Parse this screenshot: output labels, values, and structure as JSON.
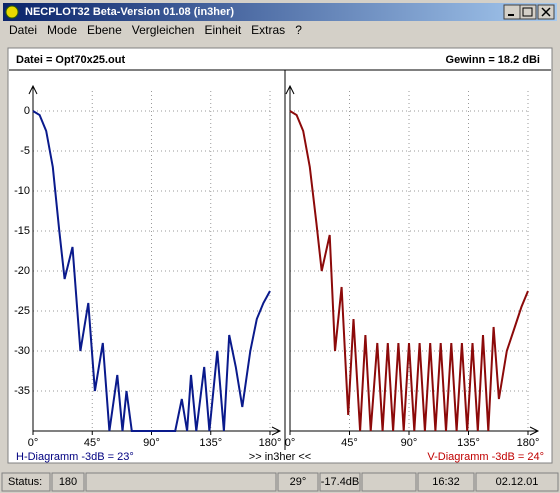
{
  "window": {
    "title": "NECPLOT32  Beta-Version 01.08 (in3her)"
  },
  "menu": [
    "Datei",
    "Mode",
    "Ebene",
    "Vergleichen",
    "Einheit",
    "Extras",
    "?"
  ],
  "header": {
    "file": "Datei = Opt70x25.out",
    "gain": "Gewinn =  18.2 dBi"
  },
  "charts": [
    {
      "type": "line",
      "caption": "H-Diagramm -3dB = 23°",
      "color": "#0a1a8c",
      "x": [
        0,
        5,
        10,
        15,
        20,
        24,
        30,
        36,
        42,
        47,
        53,
        58,
        64,
        68,
        71,
        75,
        108,
        113,
        117,
        120,
        124,
        130,
        134,
        140,
        145,
        149,
        154,
        159,
        165,
        170,
        175,
        180
      ],
      "values": [
        0,
        -0.5,
        -2.5,
        -7,
        -15,
        -21,
        -17,
        -30,
        -24,
        -35,
        -29,
        -40,
        -33,
        -40,
        -35,
        -40,
        -40,
        -36,
        -40,
        -33,
        -40,
        -32,
        -40,
        -30,
        -40,
        -28,
        -32,
        -37,
        -30,
        -26,
        -24,
        -22.5
      ],
      "xlim": [
        0,
        180
      ],
      "ylim": [
        -40,
        2.5
      ],
      "xticks": [
        {
          "value": 0,
          "label": "0°"
        },
        {
          "value": 45,
          "label": "45°"
        },
        {
          "value": 90,
          "label": "90°"
        },
        {
          "value": 135,
          "label": "135°"
        },
        {
          "value": 180,
          "label": "180°"
        }
      ],
      "yticks": [
        0,
        -5,
        -10,
        -15,
        -20,
        -25,
        -30,
        -35
      ],
      "grid": true
    },
    {
      "type": "line",
      "caption": "V-Diagramm -3dB = 24°",
      "color": "#8c0a0a",
      "x": [
        0,
        5,
        10,
        15,
        20,
        24,
        30,
        34,
        39,
        44,
        48,
        53,
        57,
        61,
        66,
        70,
        74,
        78,
        82,
        86,
        90,
        94,
        98,
        102,
        106,
        110,
        114,
        118,
        122,
        126,
        130,
        134,
        138,
        142,
        146,
        150,
        154,
        158,
        164,
        170,
        175,
        180
      ],
      "values": [
        0,
        -0.5,
        -2.5,
        -7,
        -14,
        -20,
        -15.5,
        -30,
        -22,
        -38,
        -26,
        -40,
        -28,
        -40,
        -29,
        -40,
        -29,
        -40,
        -29,
        -40,
        -29,
        -40,
        -29,
        -40,
        -29,
        -40,
        -29,
        -40,
        -29,
        -40,
        -29,
        -40,
        -29,
        -40,
        -28,
        -40,
        -27,
        -36,
        -30,
        -27,
        -24.5,
        -22.5
      ],
      "xlim": [
        0,
        180
      ],
      "ylim": [
        -40,
        2.5
      ],
      "xticks": [
        {
          "value": 0,
          "label": "0°"
        },
        {
          "value": 45,
          "label": "45°"
        },
        {
          "value": 90,
          "label": "90°"
        },
        {
          "value": 135,
          "label": "135°"
        },
        {
          "value": 180,
          "label": "180°"
        }
      ],
      "yticks": [
        0,
        -5,
        -10,
        -15,
        -20,
        -25,
        -30,
        -35
      ],
      "grid": true
    }
  ],
  "footer_center": ">> in3her <<",
  "status": {
    "label": "Status:",
    "value": "180",
    "angle": "29°",
    "level": "-17.4dB",
    "time": "16:32",
    "date": "02.12.01"
  }
}
